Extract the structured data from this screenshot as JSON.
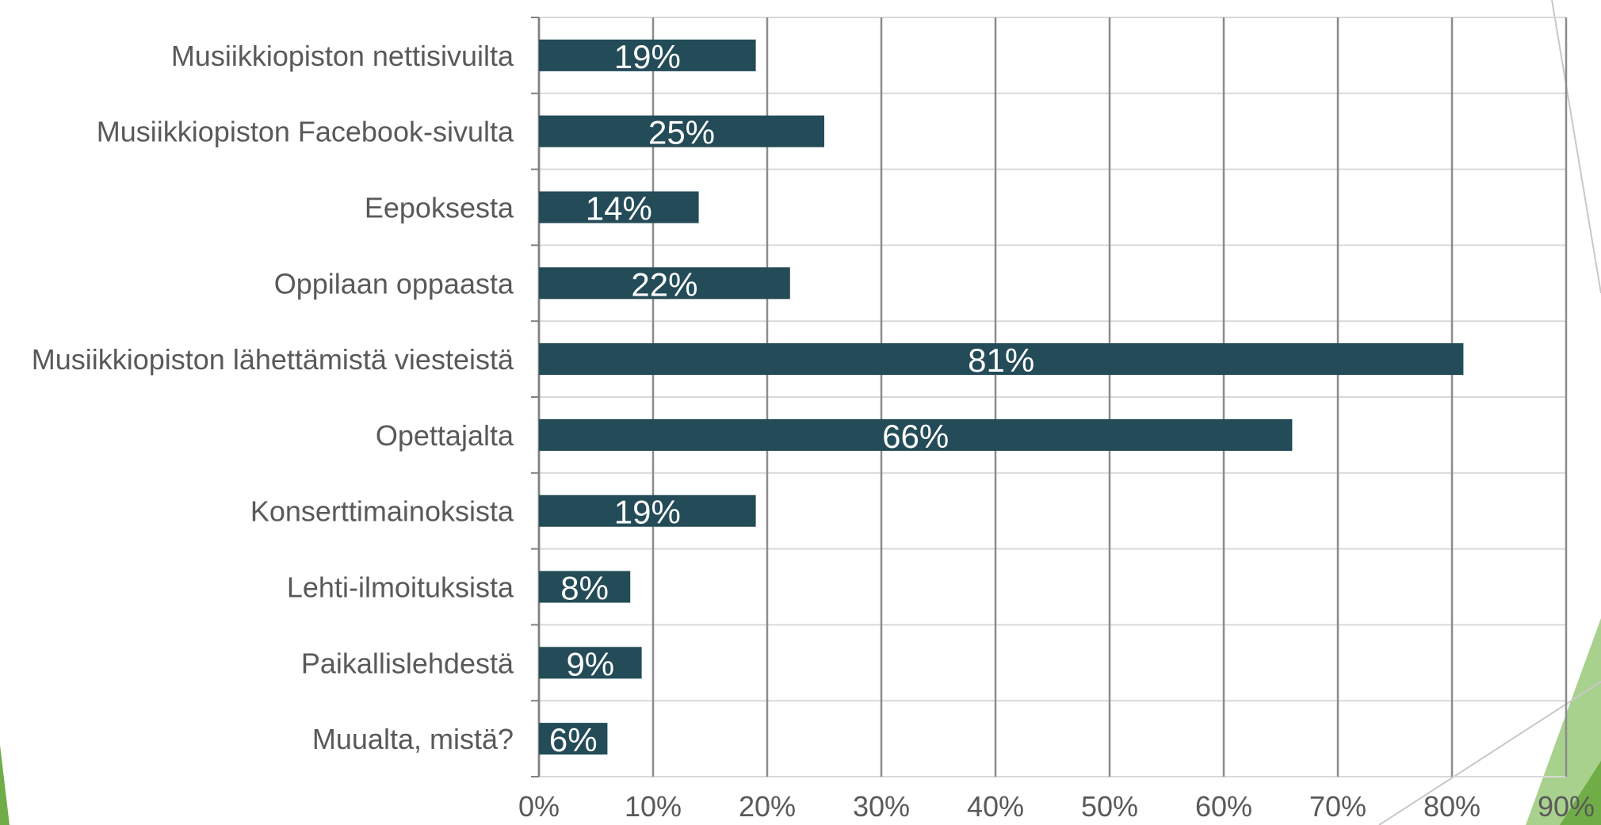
{
  "chart_data": {
    "type": "bar",
    "orientation": "horizontal",
    "categories": [
      "Musiikkiopiston nettisivuilta",
      "Musiikkiopiston Facebook-sivulta",
      "Eepoksesta",
      "Oppilaan oppaasta",
      "Musiikkiopiston lähettämistä viesteistä",
      "Opettajalta",
      "Konserttimainoksista",
      "Lehti-ilmoituksista",
      "Paikallislehdestä",
      "Muualta, mistä?"
    ],
    "values": [
      19,
      25,
      14,
      22,
      81,
      66,
      19,
      8,
      9,
      6
    ],
    "data_labels": [
      "19%",
      "25%",
      "14%",
      "22%",
      "81%",
      "66%",
      "19%",
      "8%",
      "9%",
      "6%"
    ],
    "x_ticks": [
      "0%",
      "10%",
      "20%",
      "30%",
      "40%",
      "50%",
      "60%",
      "70%",
      "80%",
      "90%"
    ],
    "xlim": [
      0,
      90
    ],
    "grid": true,
    "bar_color": "#234b58"
  },
  "decor": {
    "accent_light": "#a9d18e",
    "accent_dark": "#70ad47"
  }
}
